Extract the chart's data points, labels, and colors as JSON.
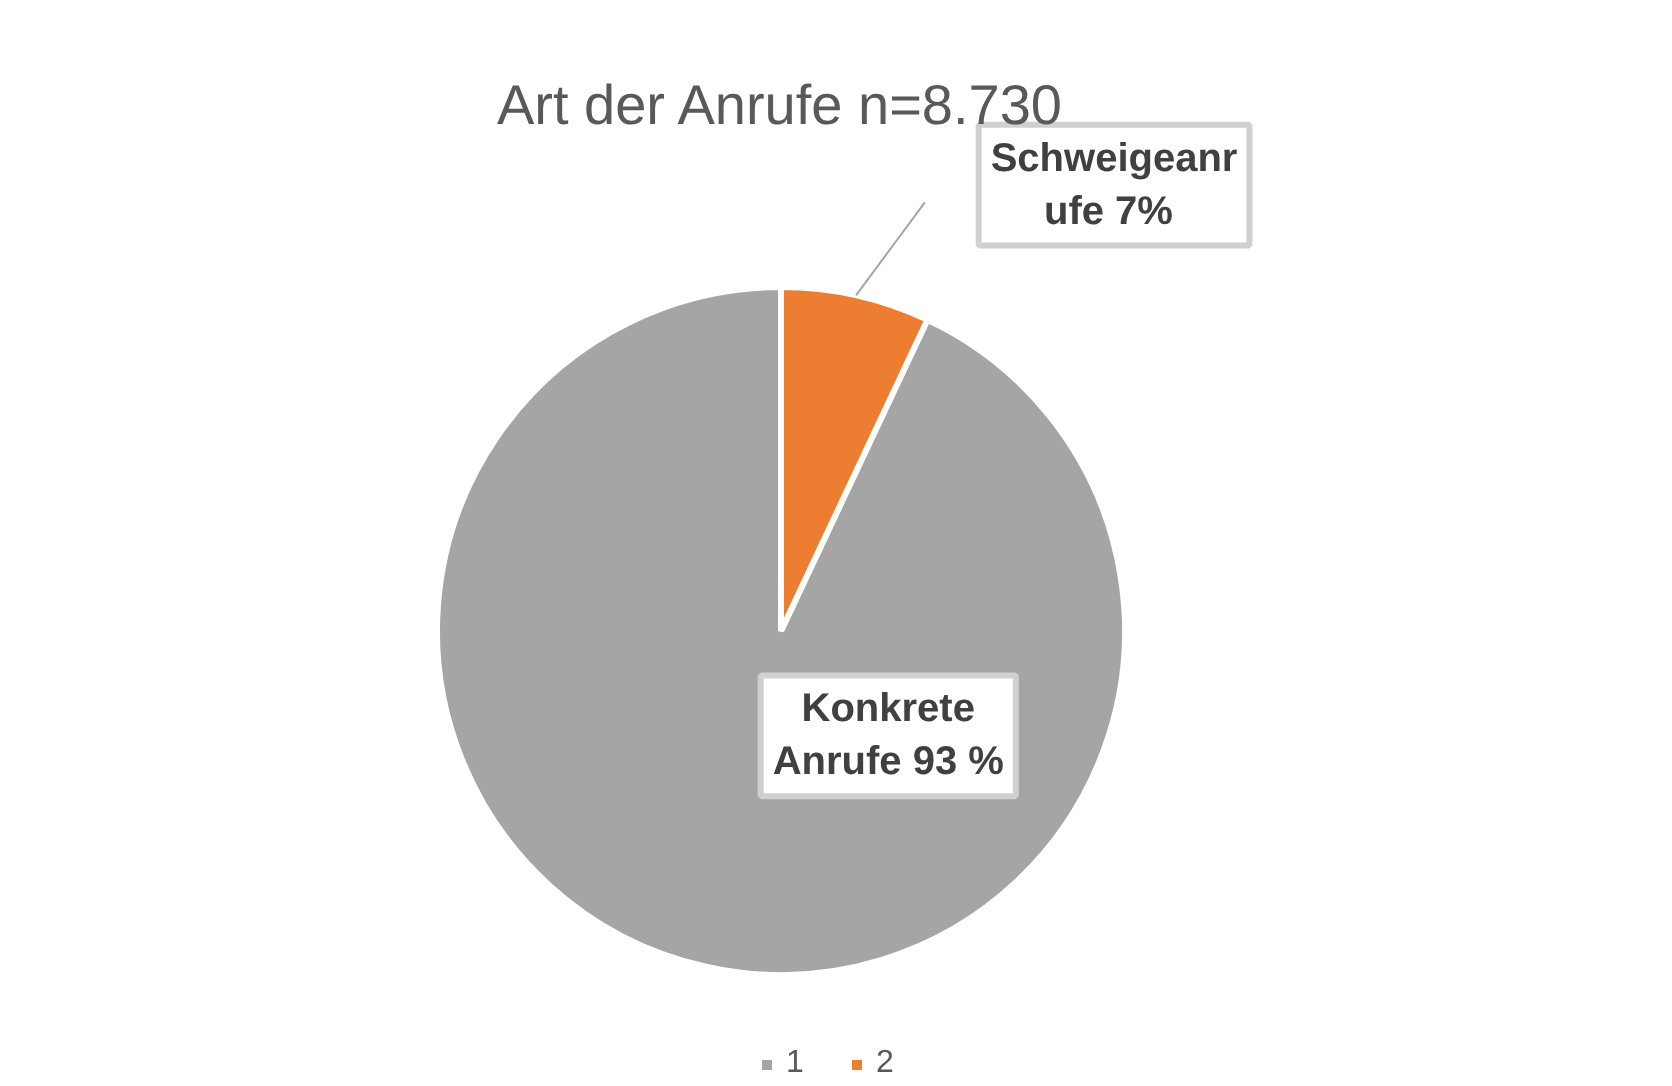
{
  "chart_data": {
    "type": "pie",
    "title": "Art der Anrufe n=8.730",
    "categories": [
      "1",
      "2"
    ],
    "values": [
      93,
      7
    ],
    "colors": [
      "#a5a5a5",
      "#ed7d31"
    ],
    "value_labels": [
      "Konkrete\nAnrufe 93 %",
      "Schweigeanr\nufe  7%"
    ],
    "legend": "bottom"
  }
}
